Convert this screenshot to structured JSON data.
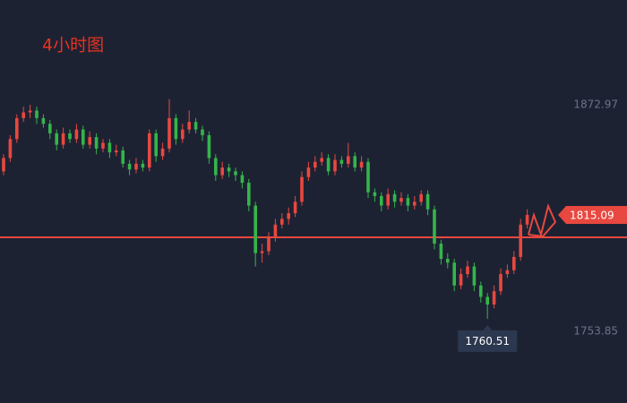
{
  "chart_data": {
    "type": "candlestick",
    "title": "4小时图",
    "ohlc": [
      [
        1838,
        1847,
        1836,
        1845
      ],
      [
        1845,
        1857,
        1843,
        1855
      ],
      [
        1855,
        1868,
        1853,
        1866
      ],
      [
        1866,
        1872,
        1864,
        1869
      ],
      [
        1869,
        1873,
        1866,
        1870
      ],
      [
        1870,
        1872,
        1863,
        1866
      ],
      [
        1866,
        1868,
        1861,
        1863
      ],
      [
        1863,
        1865,
        1855,
        1858
      ],
      [
        1858,
        1860,
        1849,
        1852
      ],
      [
        1852,
        1861,
        1850,
        1858
      ],
      [
        1858,
        1860,
        1853,
        1855
      ],
      [
        1855,
        1863,
        1853,
        1860
      ],
      [
        1860,
        1862,
        1850,
        1852
      ],
      [
        1852,
        1859,
        1850,
        1856
      ],
      [
        1856,
        1858,
        1847,
        1850
      ],
      [
        1850,
        1855,
        1848,
        1853
      ],
      [
        1853,
        1855,
        1845,
        1848
      ],
      [
        1848,
        1852,
        1846,
        1849
      ],
      [
        1849,
        1851,
        1840,
        1842
      ],
      [
        1842,
        1844,
        1836,
        1839
      ],
      [
        1839,
        1845,
        1837,
        1842
      ],
      [
        1842,
        1844,
        1838,
        1840
      ],
      [
        1840,
        1860,
        1838,
        1858
      ],
      [
        1858,
        1860,
        1843,
        1846
      ],
      [
        1846,
        1853,
        1844,
        1850
      ],
      [
        1850,
        1876,
        1848,
        1866
      ],
      [
        1866,
        1868,
        1852,
        1855
      ],
      [
        1855,
        1863,
        1853,
        1860
      ],
      [
        1860,
        1870,
        1858,
        1864
      ],
      [
        1864,
        1866,
        1858,
        1860
      ],
      [
        1860,
        1862,
        1854,
        1857
      ],
      [
        1857,
        1859,
        1842,
        1845
      ],
      [
        1845,
        1847,
        1833,
        1836
      ],
      [
        1836,
        1843,
        1834,
        1840
      ],
      [
        1840,
        1842,
        1835,
        1838
      ],
      [
        1838,
        1840,
        1833,
        1836
      ],
      [
        1836,
        1838,
        1829,
        1832
      ],
      [
        1832,
        1834,
        1817,
        1820
      ],
      [
        1820,
        1822,
        1788,
        1795
      ],
      [
        1795,
        1800,
        1790,
        1796
      ],
      [
        1796,
        1806,
        1794,
        1803
      ],
      [
        1803,
        1813,
        1801,
        1810
      ],
      [
        1810,
        1816,
        1808,
        1813
      ],
      [
        1813,
        1819,
        1810,
        1816
      ],
      [
        1816,
        1825,
        1814,
        1822
      ],
      [
        1822,
        1838,
        1820,
        1835
      ],
      [
        1835,
        1843,
        1833,
        1840
      ],
      [
        1840,
        1846,
        1838,
        1843
      ],
      [
        1843,
        1848,
        1841,
        1845
      ],
      [
        1845,
        1847,
        1836,
        1838
      ],
      [
        1838,
        1847,
        1836,
        1844
      ],
      [
        1844,
        1846,
        1840,
        1842
      ],
      [
        1842,
        1853,
        1840,
        1846
      ],
      [
        1846,
        1848,
        1838,
        1840
      ],
      [
        1840,
        1846,
        1838,
        1843
      ],
      [
        1843,
        1845,
        1824,
        1827
      ],
      [
        1827,
        1829,
        1822,
        1825
      ],
      [
        1825,
        1827,
        1817,
        1820
      ],
      [
        1820,
        1829,
        1818,
        1826
      ],
      [
        1826,
        1828,
        1819,
        1822
      ],
      [
        1822,
        1827,
        1820,
        1824
      ],
      [
        1824,
        1826,
        1817,
        1820
      ],
      [
        1820,
        1825,
        1818,
        1822
      ],
      [
        1822,
        1828,
        1820,
        1826
      ],
      [
        1826,
        1828,
        1815,
        1818
      ],
      [
        1818,
        1820,
        1797,
        1800
      ],
      [
        1800,
        1802,
        1789,
        1792
      ],
      [
        1792,
        1795,
        1787,
        1790
      ],
      [
        1790,
        1792,
        1775,
        1778
      ],
      [
        1778,
        1787,
        1776,
        1784
      ],
      [
        1784,
        1791,
        1782,
        1788
      ],
      [
        1788,
        1790,
        1775,
        1778
      ],
      [
        1778,
        1780,
        1769,
        1772
      ],
      [
        1772,
        1774,
        1760.51,
        1768
      ],
      [
        1768,
        1778,
        1766,
        1775
      ],
      [
        1775,
        1787,
        1773,
        1784
      ],
      [
        1784,
        1789,
        1782,
        1786
      ],
      [
        1786,
        1796,
        1784,
        1793
      ],
      [
        1793,
        1813,
        1791,
        1810
      ],
      [
        1810,
        1818,
        1808,
        1815.09
      ]
    ],
    "up_color": "#e8483f",
    "down_color": "#35b54a",
    "ylim": [
      1716.2,
      1928.1
    ],
    "yticks": [
      1753.85,
      1872.97
    ],
    "low_label": 1760.51,
    "last_price": 1815.09
  }
}
